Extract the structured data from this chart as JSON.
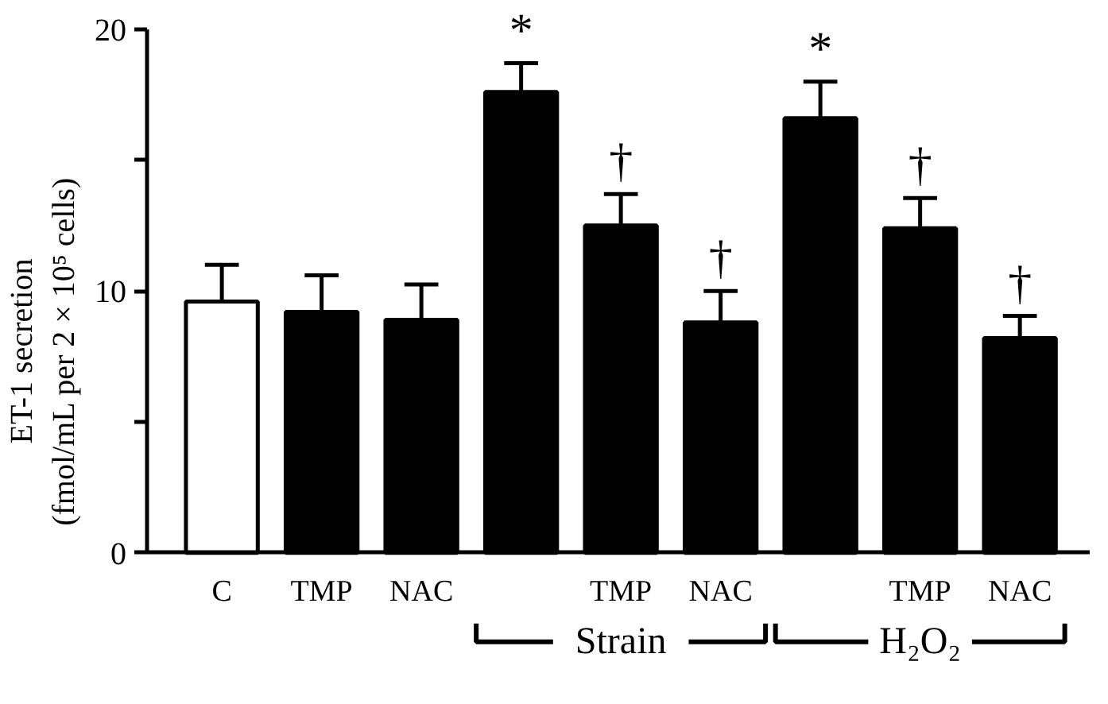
{
  "chart_data": {
    "type": "bar",
    "ylabel": "ET-1 secretion\n(fmol/mL per 2 × 10⁵ cells)",
    "categories": [
      "C",
      "TMP",
      "NAC",
      null,
      "TMP",
      "NAC",
      null,
      "TMP",
      "NAC"
    ],
    "values": [
      9.6,
      9.2,
      8.9,
      17.6,
      12.5,
      8.8,
      16.6,
      12.4,
      8.2
    ],
    "errors": [
      1.4,
      1.4,
      1.35,
      1.1,
      1.2,
      1.2,
      1.4,
      1.15,
      0.85
    ],
    "colors": [
      "#ffffff",
      "#000000",
      "#000000",
      "#000000",
      "#000000",
      "#000000",
      "#000000",
      "#000000",
      "#000000"
    ],
    "value_labels": [
      null,
      null,
      null,
      "*",
      "†",
      "†",
      "*",
      "†",
      "†"
    ],
    "annotations": [
      "Strain",
      "H₂O₂"
    ],
    "ylim": [
      0,
      20
    ],
    "yticks": [
      0,
      {
        "value": 5,
        "label": null
      },
      10,
      {
        "value": 15,
        "label": null
      },
      20
    ],
    "grid": false
  }
}
